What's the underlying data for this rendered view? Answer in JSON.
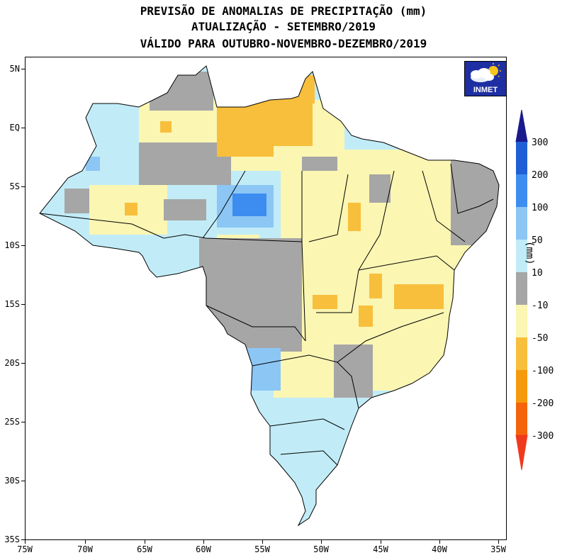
{
  "title": {
    "line1": "PREVISÃO DE ANOMALIAS DE PRECIPITAÇÃO (mm)",
    "line2": "ATUALIZAÇÃO - SETEMBRO/2019",
    "line3": "VÁLIDO PARA OUTUBRO-NOVEMBRO-DEZEMBRO/2019"
  },
  "axes": {
    "y_labels": [
      "5N",
      "EQ",
      "5S",
      "10S",
      "15S",
      "20S",
      "25S",
      "30S",
      "35S"
    ],
    "x_labels": [
      "75W",
      "70W",
      "65W",
      "60W",
      "55W",
      "50W",
      "45W",
      "40W",
      "35W"
    ]
  },
  "logo": {
    "text": "INMET",
    "icon": "cloud-sun-icon"
  },
  "colorbar": {
    "units": "(mm)",
    "labels": [
      "300",
      "200",
      "100",
      "50",
      "10",
      "-10",
      "-50",
      "-100",
      "-200",
      "-300"
    ],
    "colors": [
      "#1a1a8c",
      "#1f5fd6",
      "#3d8df0",
      "#8cc6f5",
      "#c1ecf7",
      "#a6a6a6",
      "#fbf6b2",
      "#f8bf3c",
      "#f59a0d",
      "#f4640c",
      "#ef3a1e"
    ]
  },
  "palette": {
    "wet_strong": "#3d8df0",
    "wet_medium": "#8cc6f5",
    "wet_light": "#c1ecf7",
    "neutral": "#a6a6a6",
    "dry_light": "#fbf6b2",
    "dry_medium": "#f8bf3c",
    "dry_strong": "#f59a0d"
  }
}
